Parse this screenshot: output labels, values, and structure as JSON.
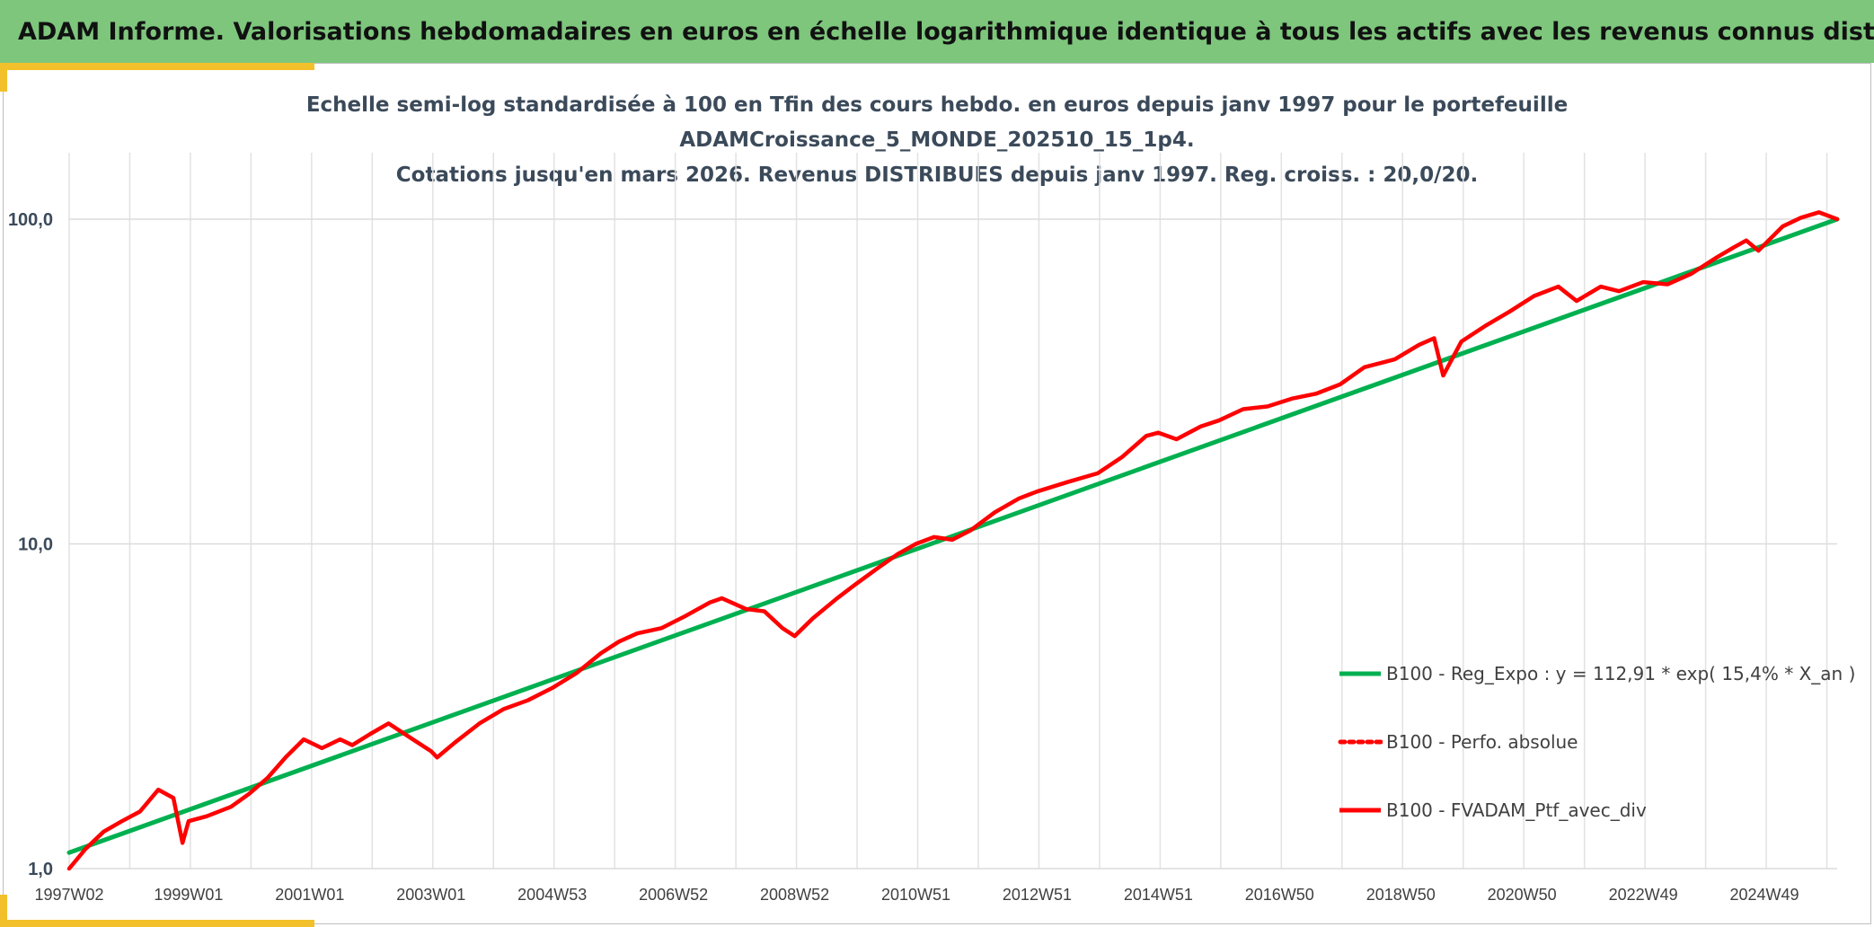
{
  "banner": {
    "title": "ADAM Informe. Valorisations hebdomadaires en euros en échelle logarithmique identique à tous les actifs avec les revenus connus distribués"
  },
  "colors": {
    "banner_green": "#7dc67c",
    "accent_yellow": "#f2c02a",
    "regression_green": "#00b050",
    "portfolio_red": "#ff0000",
    "title_text": "#3b4a5a"
  },
  "chart_data": {
    "type": "line",
    "title_lines": [
      "Echelle semi-log standardisée à 100 en Tfin des cours hebdo. en euros depuis janv 1997 pour le portefeuille",
      "ADAMCroissance_5_MONDE_202510_15_1p4.",
      "Cotations jusqu'en mars 2026. Revenus DISTRIBUES depuis janv 1997. Reg. croiss. : 20,0/20."
    ],
    "y_scale": "log",
    "ylim": [
      1,
      180
    ],
    "y_ticks": [
      1,
      10,
      100
    ],
    "y_tick_labels": [
      "1,0",
      "10,0",
      "100,0"
    ],
    "x_range": [
      1997.03,
      2026.2
    ],
    "x_ticks": [
      1997.03,
      1999.0,
      2001.0,
      2003.0,
      2005.0,
      2007.0,
      2009.0,
      2011.0,
      2013.0,
      2015.0,
      2017.0,
      2019.0,
      2021.0,
      2023.0,
      2025.0
    ],
    "x_tick_labels": [
      "1997W02",
      "1999W01",
      "2001W01",
      "2003W01",
      "2004W53",
      "2006W52",
      "2008W52",
      "2010W51",
      "2012W51",
      "2014W51",
      "2016W50",
      "2018W50",
      "2020W50",
      "2022W49",
      "2024W49"
    ],
    "grid": "vertical",
    "legend_position": "bottom-right",
    "series": [
      {
        "name": "B100 - Reg_Expo : y = 112,91 * exp( 15,4% *  X_an )",
        "style": "solid",
        "color": "#00b050",
        "x": [
          1997.03,
          2026.2
        ],
        "y": [
          1.12,
          100.0
        ]
      },
      {
        "name": "B100 - Perfo. absolue",
        "style": "dotted",
        "color": "#ff0000",
        "x": [],
        "y": []
      },
      {
        "name": "B100 - FVADAM_Ptf_avec_div",
        "style": "solid",
        "color": "#ff0000",
        "x": [
          1997.03,
          1997.3,
          1997.6,
          1997.9,
          1998.2,
          1998.5,
          1998.75,
          1998.9,
          1999.0,
          1999.3,
          1999.7,
          2000.0,
          2000.3,
          2000.6,
          2000.9,
          2001.2,
          2001.5,
          2001.7,
          2002.0,
          2002.3,
          2002.7,
          2003.0,
          2003.1,
          2003.4,
          2003.8,
          2004.2,
          2004.6,
          2005.0,
          2005.4,
          2005.8,
          2006.1,
          2006.4,
          2006.8,
          2007.2,
          2007.6,
          2007.8,
          2008.2,
          2008.5,
          2008.8,
          2009.0,
          2009.3,
          2009.7,
          2010.0,
          2010.4,
          2010.7,
          2011.0,
          2011.3,
          2011.6,
          2011.9,
          2012.3,
          2012.7,
          2013.0,
          2013.5,
          2014.0,
          2014.4,
          2014.8,
          2015.0,
          2015.3,
          2015.7,
          2016.0,
          2016.4,
          2016.8,
          2017.2,
          2017.6,
          2018.0,
          2018.4,
          2018.9,
          2019.3,
          2019.55,
          2019.7,
          2020.0,
          2020.4,
          2020.8,
          2021.2,
          2021.6,
          2021.9,
          2022.3,
          2022.6,
          2023.0,
          2023.4,
          2023.8,
          2024.2,
          2024.5,
          2024.7,
          2024.9,
          2025.3,
          2025.6,
          2025.9,
          2026.2
        ],
        "y": [
          1.0,
          1.15,
          1.3,
          1.4,
          1.5,
          1.75,
          1.65,
          1.2,
          1.4,
          1.45,
          1.55,
          1.7,
          1.9,
          2.2,
          2.5,
          2.35,
          2.5,
          2.4,
          2.6,
          2.8,
          2.5,
          2.3,
          2.2,
          2.45,
          2.8,
          3.1,
          3.3,
          3.6,
          4.0,
          4.6,
          5.0,
          5.3,
          5.5,
          6.0,
          6.6,
          6.8,
          6.3,
          6.2,
          5.5,
          5.2,
          5.9,
          6.8,
          7.5,
          8.5,
          9.3,
          10.0,
          10.5,
          10.3,
          11.0,
          12.5,
          13.8,
          14.5,
          15.5,
          16.5,
          18.5,
          21.5,
          22.0,
          21.0,
          23.0,
          24.0,
          26.0,
          26.5,
          28.0,
          29.0,
          31.0,
          35.0,
          37.0,
          41.0,
          43.0,
          33.0,
          42.0,
          47.0,
          52.0,
          58.0,
          62.0,
          56.0,
          62.0,
          60.0,
          64.0,
          63.0,
          68.0,
          76.0,
          82.0,
          86.0,
          80.0,
          95.0,
          101.0,
          105.0,
          100.0
        ]
      }
    ]
  }
}
